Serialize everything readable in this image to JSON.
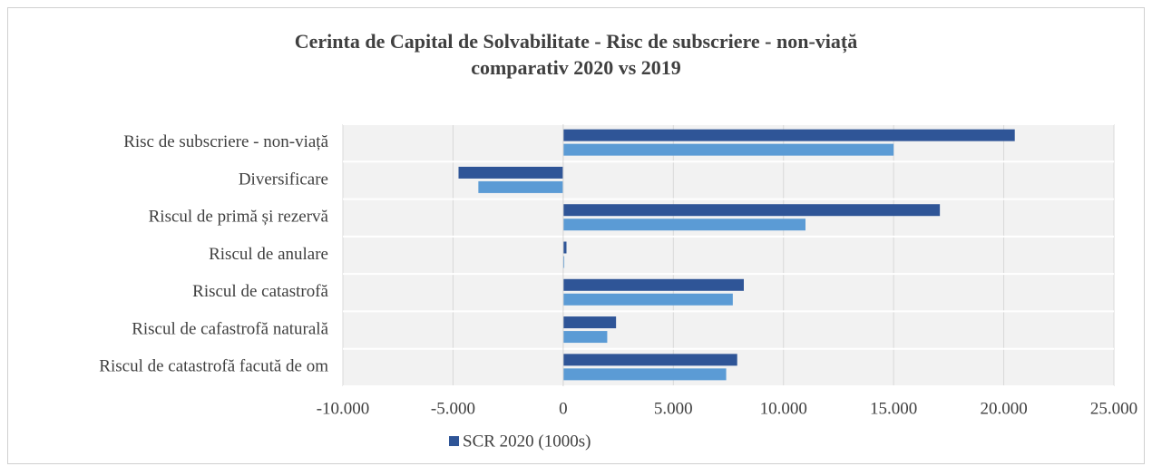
{
  "chart_data": {
    "type": "hbar",
    "title": [
      "Cerinta de Capital de Solvabilitate - Risc de subscriere - non-viață",
      "comparativ 2020 vs 2019"
    ],
    "categories": [
      "Risc de subscriere - non-viață",
      "Diversificare",
      "Riscul de primă și rezervă",
      "Riscul de anulare",
      "Riscul de catastrofă",
      "Riscul de cafastrofă naturală",
      "Riscul de catastrofă facută de om"
    ],
    "series": [
      {
        "name": "SCR 2020 (1000s)",
        "color": "#2f5597",
        "values": [
          20500,
          -4750,
          17100,
          150,
          8200,
          2400,
          7900
        ]
      },
      {
        "color": "#5b9bd5",
        "values": [
          15000,
          -3850,
          11000,
          50,
          7700,
          2000,
          7400
        ]
      }
    ],
    "xlim": [
      -10000,
      25000
    ],
    "xticks": [
      {
        "value": -10000,
        "label": "-10.000"
      },
      {
        "value": -5000,
        "label": "-5.000"
      },
      0,
      {
        "value": 5000,
        "label": "5.000"
      },
      {
        "value": 10000,
        "label": "10.000"
      },
      {
        "value": 15000,
        "label": "15.000"
      },
      {
        "value": 20000,
        "label": "20.000"
      },
      {
        "value": 25000,
        "label": "25.000"
      }
    ],
    "grid": true,
    "legend": "bottom"
  }
}
